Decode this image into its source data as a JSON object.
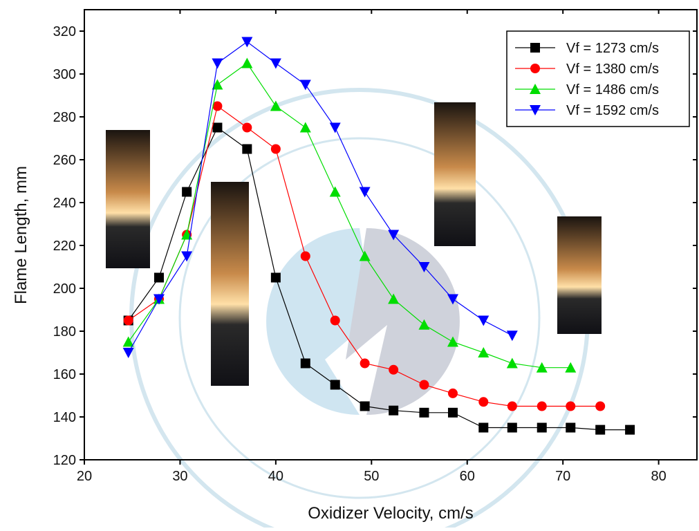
{
  "chart_data": {
    "type": "line",
    "xlabel": "Oxidizer Velocity, cm/s",
    "ylabel": "Flame Length, mm",
    "xlim": [
      20,
      84
    ],
    "ylim": [
      120,
      330
    ],
    "xticks": [
      20,
      30,
      40,
      50,
      60,
      70,
      80
    ],
    "yticks": [
      120,
      140,
      160,
      180,
      200,
      220,
      240,
      260,
      280,
      300,
      320
    ],
    "legend": "upper right",
    "series": [
      {
        "name": "Vf = 1273 cm/s",
        "color": "#000000",
        "marker": "square",
        "x": [
          24.6,
          27.8,
          30.7,
          33.9,
          37.0,
          40.0,
          43.1,
          46.2,
          49.3,
          52.3,
          55.5,
          58.5,
          61.7,
          64.7,
          67.8,
          70.8,
          73.9,
          77.0
        ],
        "values": [
          185,
          205,
          245,
          275,
          265,
          205,
          165,
          155,
          145,
          143,
          142,
          142,
          135,
          135,
          135,
          135,
          134,
          134
        ]
      },
      {
        "name": "Vf = 1380 cm/s",
        "color": "#ff0000",
        "marker": "circle",
        "x": [
          24.6,
          27.8,
          30.7,
          33.9,
          37.0,
          40.0,
          43.1,
          46.2,
          49.3,
          52.3,
          55.5,
          58.5,
          61.7,
          64.7,
          67.8,
          70.8,
          73.9
        ],
        "values": [
          185,
          195,
          225,
          285,
          275,
          265,
          215,
          185,
          165,
          162,
          155,
          151,
          147,
          145,
          145,
          145,
          145
        ]
      },
      {
        "name": "Vf = 1486 cm/s",
        "color": "#00dd00",
        "marker": "triangle-up",
        "x": [
          24.6,
          27.8,
          30.7,
          33.9,
          37.0,
          40.0,
          43.1,
          46.2,
          49.3,
          52.3,
          55.5,
          58.5,
          61.7,
          64.7,
          67.8,
          70.8
        ],
        "values": [
          175,
          195,
          225,
          295,
          305,
          285,
          275,
          245,
          215,
          195,
          183,
          175,
          170,
          165,
          163,
          163
        ]
      },
      {
        "name": "Vf = 1592 cm/s",
        "color": "#0000ff",
        "marker": "triangle-down",
        "x": [
          24.6,
          27.8,
          30.7,
          33.9,
          37.0,
          40.0,
          43.1,
          46.2,
          49.3,
          52.3,
          55.5,
          58.5,
          61.7,
          64.7
        ],
        "values": [
          170,
          195,
          215,
          305,
          315,
          305,
          295,
          275,
          245,
          225,
          210,
          195,
          185,
          178
        ]
      }
    ]
  }
}
